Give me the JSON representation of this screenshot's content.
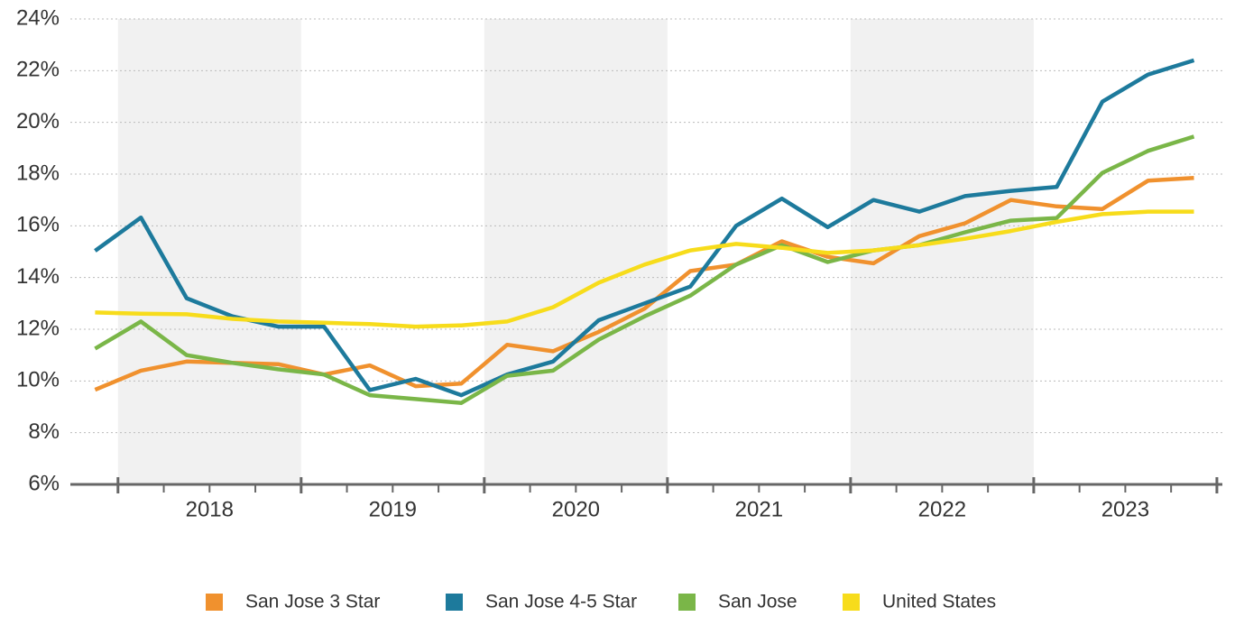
{
  "chart_data": {
    "type": "line",
    "x": [
      2017.875,
      2018.125,
      2018.375,
      2018.625,
      2018.875,
      2019.125,
      2019.375,
      2019.625,
      2019.875,
      2020.125,
      2020.375,
      2020.625,
      2020.875,
      2021.125,
      2021.375,
      2021.625,
      2021.875,
      2022.125,
      2022.375,
      2022.625,
      2022.875,
      2023.125,
      2023.375,
      2023.625,
      2023.875
    ],
    "xlim": [
      2017.74,
      2024.03
    ],
    "xticks": [
      {
        "value": 2018.5,
        "label": "2018"
      },
      {
        "value": 2019.5,
        "label": "2019"
      },
      {
        "value": 2020.5,
        "label": "2020"
      },
      {
        "value": 2021.5,
        "label": "2021"
      },
      {
        "value": 2022.5,
        "label": "2022"
      },
      {
        "value": 2023.5,
        "label": "2023"
      }
    ],
    "ylim": [
      6,
      24
    ],
    "yticks": [
      {
        "value": 6,
        "label": "6%"
      },
      {
        "value": 8,
        "label": "8%"
      },
      {
        "value": 10,
        "label": "10%"
      },
      {
        "value": 12,
        "label": "12%"
      },
      {
        "value": 14,
        "label": "14%"
      },
      {
        "value": 16,
        "label": "16%"
      },
      {
        "value": 18,
        "label": "18%"
      },
      {
        "value": 20,
        "label": "20%"
      },
      {
        "value": 22,
        "label": "22%"
      },
      {
        "value": 24,
        "label": "24%"
      }
    ],
    "grid": true,
    "legend": "bottom",
    "series": [
      {
        "name": "San Jose 3 Star",
        "color": "#f0912e",
        "values": [
          9.66,
          10.4,
          10.75,
          10.7,
          10.65,
          10.25,
          10.6,
          9.8,
          9.9,
          11.4,
          11.15,
          11.9,
          12.8,
          14.25,
          14.5,
          15.4,
          14.8,
          14.55,
          15.6,
          16.1,
          17.0,
          16.75,
          16.65,
          17.75,
          17.85
        ]
      },
      {
        "name": "San Jose 4-5 Star",
        "color": "#1d7a9c",
        "values": [
          15.03,
          16.32,
          13.2,
          12.5,
          12.1,
          12.1,
          9.65,
          10.08,
          9.45,
          10.25,
          10.75,
          12.35,
          13.0,
          13.65,
          16.0,
          17.05,
          15.95,
          17.0,
          16.55,
          17.15,
          17.35,
          17.5,
          20.8,
          21.85,
          22.4
        ]
      },
      {
        "name": "San Jose",
        "color": "#7ab648",
        "values": [
          11.25,
          12.3,
          11.0,
          10.7,
          10.45,
          10.25,
          9.45,
          9.3,
          9.15,
          10.2,
          10.4,
          11.6,
          12.5,
          13.3,
          14.5,
          15.25,
          14.6,
          15.05,
          15.25,
          15.75,
          16.2,
          16.3,
          18.05,
          18.9,
          19.45
        ]
      },
      {
        "name": "United States",
        "color": "#f7dc1b",
        "values": [
          12.65,
          12.6,
          12.58,
          12.4,
          12.3,
          12.25,
          12.2,
          12.1,
          12.15,
          12.3,
          12.85,
          13.8,
          14.5,
          15.05,
          15.3,
          15.15,
          14.95,
          15.05,
          15.25,
          15.5,
          15.8,
          16.15,
          16.45,
          16.55,
          16.55
        ]
      }
    ]
  }
}
